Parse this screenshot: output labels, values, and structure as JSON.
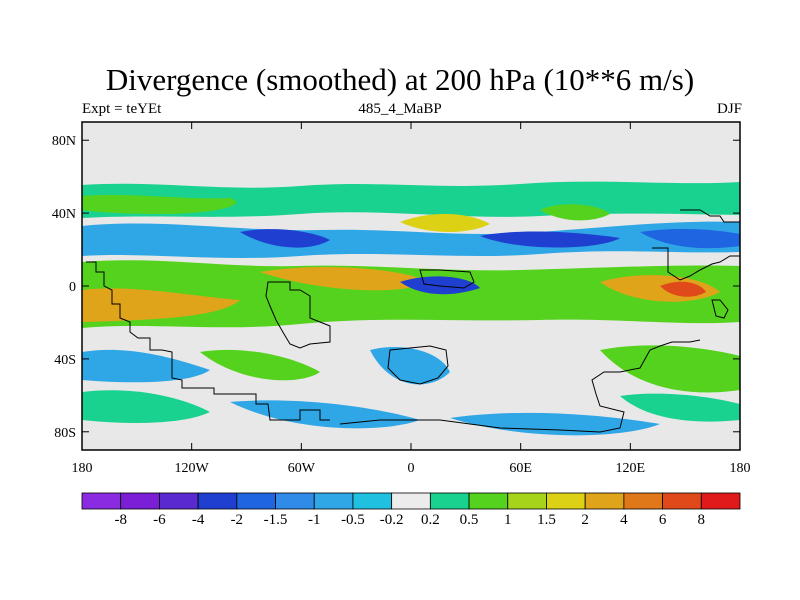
{
  "title": "Divergence (smoothed) at 200 hPa (10**6 m/s)",
  "subtitle_left": "Expt = teYEt",
  "subtitle_center": "485_4_MaBP",
  "subtitle_right": "DJF",
  "lat_labels": [
    {
      "text": "80N",
      "lat": 80
    },
    {
      "text": "40N",
      "lat": 40
    },
    {
      "text": "0",
      "lat": 0
    },
    {
      "text": "40S",
      "lat": -40
    },
    {
      "text": "80S",
      "lat": -80
    }
  ],
  "lon_labels": [
    {
      "text": "180",
      "lon": -180
    },
    {
      "text": "120W",
      "lon": -120
    },
    {
      "text": "60W",
      "lon": -60
    },
    {
      "text": "0",
      "lon": 0
    },
    {
      "text": "60E",
      "lon": 60
    },
    {
      "text": "120E",
      "lon": 120
    },
    {
      "text": "180",
      "lon": 180
    }
  ],
  "colorbar": {
    "colors": [
      "#8a2be2",
      "#7a1fd6",
      "#5a2ad0",
      "#1f3fd0",
      "#1f64e0",
      "#2f8ae8",
      "#2fa6e6",
      "#1fc0e0",
      "#ececec",
      "#19d28f",
      "#55d21e",
      "#a6d41a",
      "#dcd114",
      "#e0a41a",
      "#e0781a",
      "#e04a1a",
      "#e01a1a"
    ],
    "labels": [
      "-8",
      "-6",
      "-4",
      "-2",
      "-1.5",
      "-1",
      "-0.5",
      "-0.2",
      "0.2",
      "0.5",
      "1",
      "1.5",
      "2",
      "4",
      "6",
      "8"
    ]
  },
  "map": {
    "lon_range": [
      -180,
      180
    ],
    "lat_range": [
      -90,
      90
    ],
    "background": "#e8e8e8",
    "bands": [
      {
        "lat": 50,
        "level": 10,
        "color": "#19d28f"
      },
      {
        "lat": 44,
        "level": 10,
        "color": "#55d21e"
      },
      {
        "lat": 26,
        "level": -4,
        "color": "#1f64e0"
      },
      {
        "lat": 28,
        "level": -5,
        "color": "#1f3fd0"
      },
      {
        "lat": 10,
        "level": 3,
        "color": "#1fc0e0"
      },
      {
        "lat": 2,
        "level": 12,
        "color": "#dcd114"
      },
      {
        "lat": -10,
        "level": 13,
        "color": "#e0a41a"
      },
      {
        "lat": -25,
        "level": 10,
        "color": "#55d21e"
      },
      {
        "lat": -45,
        "level": 7,
        "color": "#1fc0e0"
      },
      {
        "lat": -70,
        "level": 6,
        "color": "#2fa6e6"
      }
    ]
  }
}
